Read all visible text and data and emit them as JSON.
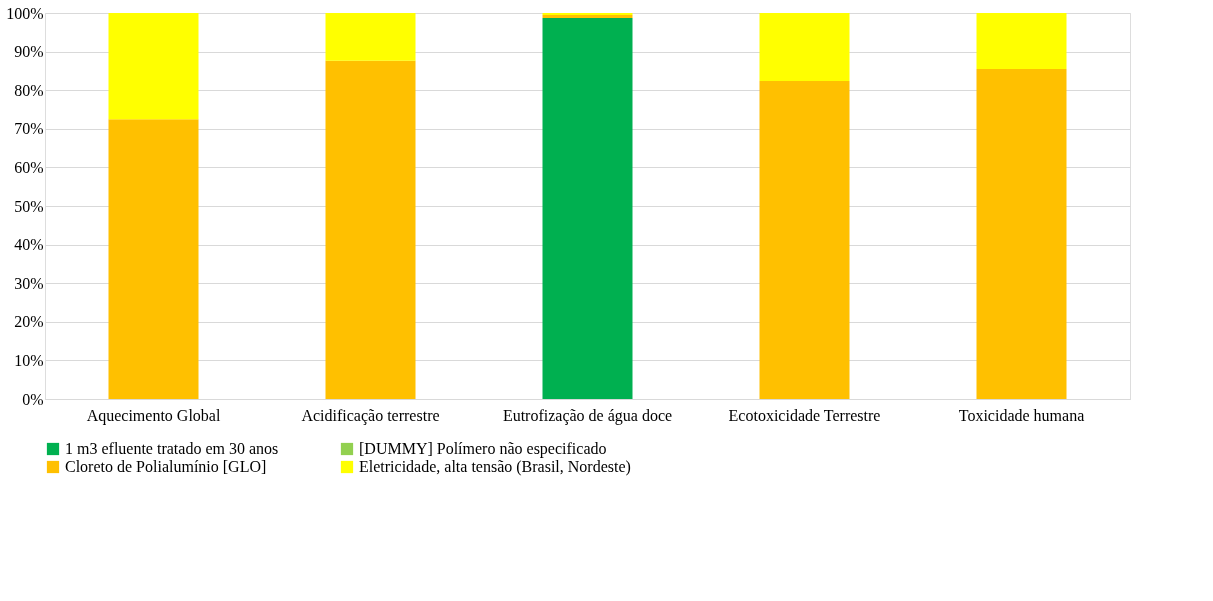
{
  "chart_data": {
    "type": "bar",
    "stacked": true,
    "categories": [
      "Aquecimento Global",
      "Acidificação terrestre",
      "Eutrofização de água doce",
      "Ecotoxicidade Terrestre",
      "Toxicidade humana"
    ],
    "series": [
      {
        "name": "1 m3 efluente tratado em 30 anos",
        "color": "#00b050",
        "values": [
          0,
          0,
          98.7,
          0,
          0
        ]
      },
      {
        "name": "[DUMMY] Polímero não especificado",
        "color": "#92d050",
        "values": [
          0,
          0,
          0,
          0,
          0
        ]
      },
      {
        "name": "Cloreto de Polialumínio [GLO]",
        "color": "#ffc000",
        "values": [
          72.5,
          87.6,
          0.8,
          82.4,
          85.5
        ]
      },
      {
        "name": "Eletricidade, alta tensão (Brasil, Nordeste)",
        "color": "#ffff00",
        "values": [
          27.5,
          12.4,
          0.5,
          17.6,
          14.5
        ]
      }
    ],
    "ylim": [
      0,
      100
    ],
    "yticks": [
      {
        "value": 0,
        "label": "0%"
      },
      {
        "value": 10,
        "label": "10%"
      },
      {
        "value": 20,
        "label": "20%"
      },
      {
        "value": 30,
        "label": "30%"
      },
      {
        "value": 40,
        "label": "40%"
      },
      {
        "value": 50,
        "label": "50%"
      },
      {
        "value": 60,
        "label": "60%"
      },
      {
        "value": 70,
        "label": "70%"
      },
      {
        "value": 80,
        "label": "80%"
      },
      {
        "value": 90,
        "label": "90%"
      },
      {
        "value": 100,
        "label": "100%"
      }
    ],
    "grid": "y",
    "legend": "bottom"
  }
}
